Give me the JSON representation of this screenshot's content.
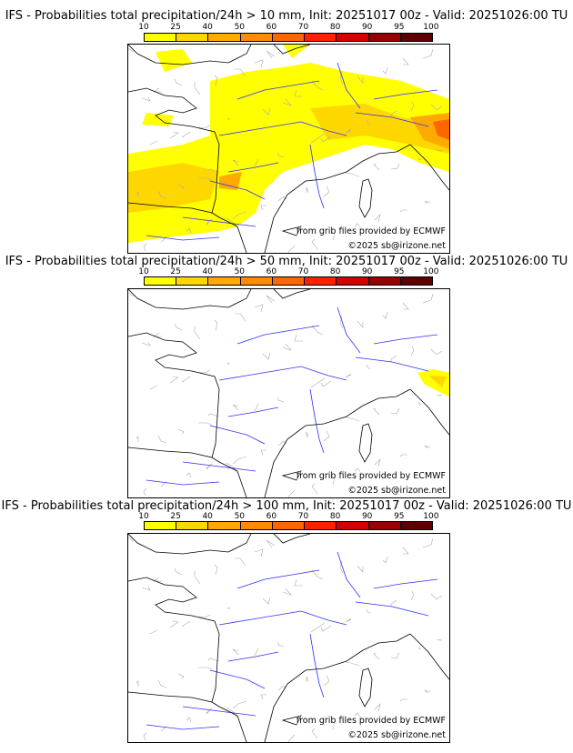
{
  "panels": [
    {
      "title": "IFS - Probabilities total precipitation/24h > 10 mm, Init: 20251017 00z - Valid: 20251026:00 TU",
      "precip": "heavy"
    },
    {
      "title": "IFS - Probabilities total precipitation/24h > 50 mm, Init: 20251017 00z - Valid: 20251026:00 TU",
      "precip": "light"
    },
    {
      "title": "IFS - Probabilities total precipitation/24h > 100 mm, Init: 20251017 00z - Valid: 20251026:00 TU",
      "precip": "none"
    }
  ],
  "colorbar": {
    "ticks": [
      "10",
      "25",
      "40",
      "50",
      "60",
      "70",
      "80",
      "90",
      "95",
      "100"
    ],
    "colors": [
      "#ffff00",
      "#ffd700",
      "#ffaa00",
      "#ff8c00",
      "#ff6600",
      "#ff2000",
      "#d40000",
      "#990000",
      "#5e0000"
    ]
  },
  "credits": {
    "source": "from grib files provided by ECMWF",
    "copyright": "©2025 sb@irizone.net"
  }
}
